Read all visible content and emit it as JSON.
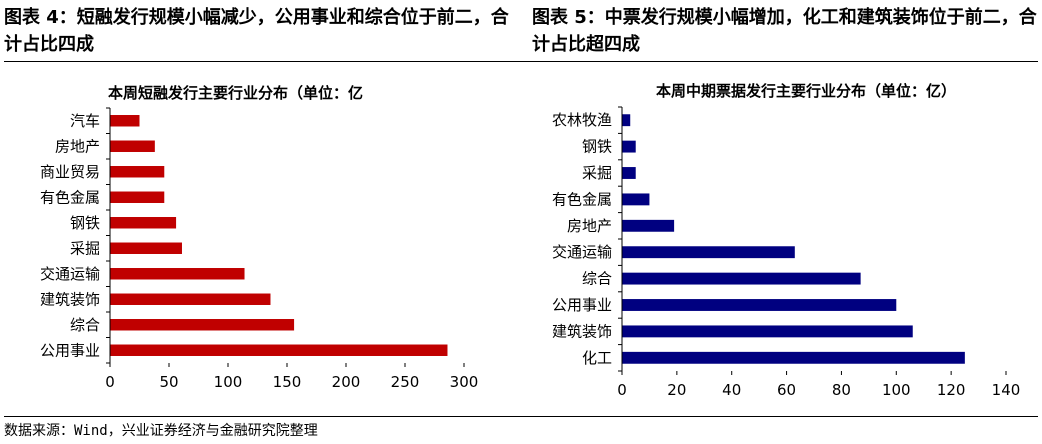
{
  "figures": {
    "left_title": "图表 4：短融发行规模小幅减少，公用事业和综合位于前二，合计占比四成",
    "right_title": "图表 5：中票发行规模小幅增加，化工和建筑装饰位于前二，合计占比超四成"
  },
  "source": "数据来源：Wind，兴业证券经济与金融研究院整理",
  "chart_data": [
    {
      "type": "bar",
      "orientation": "horizontal",
      "title": "本周短融发行主要行业分布（单位：亿",
      "categories": [
        "汽车",
        "房地产",
        "商业贸易",
        "有色金属",
        "钢铁",
        "采掘",
        "交通运输",
        "建筑装饰",
        "综合",
        "公用事业"
      ],
      "values": [
        25,
        38,
        46,
        46,
        56,
        61,
        114,
        136,
        156,
        286
      ],
      "xlim": [
        0,
        300
      ],
      "xticks": [
        "0",
        "50",
        "100",
        "150",
        "200",
        "250",
        "300"
      ],
      "color": "#C00000",
      "grid": false
    },
    {
      "type": "bar",
      "orientation": "horizontal",
      "title": "本周中期票据发行主要行业分布（单位：亿）",
      "categories": [
        "农林牧渔",
        "钢铁",
        "采掘",
        "有色金属",
        "房地产",
        "交通运输",
        "综合",
        "公用事业",
        "建筑装饰",
        "化工"
      ],
      "values": [
        3,
        5,
        5,
        10,
        19,
        63,
        87,
        100,
        106,
        125
      ],
      "xlim": [
        0,
        140
      ],
      "xticks": [
        "0",
        "20",
        "40",
        "60",
        "80",
        "100",
        "120",
        "140"
      ],
      "color": "#000080",
      "grid": false
    }
  ]
}
